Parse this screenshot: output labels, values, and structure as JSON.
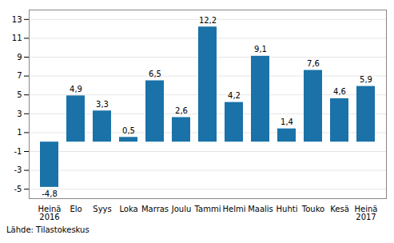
{
  "chart_data": {
    "type": "bar",
    "categories": [
      "Heinä\n2016",
      "Elo",
      "Syys",
      "Loka",
      "Marras",
      "Joulu",
      "Tammi",
      "Helmi",
      "Maalis",
      "Huhti",
      "Touko",
      "Kesä",
      "Heinä\n2017"
    ],
    "values": [
      -4.8,
      4.9,
      3.3,
      0.5,
      6.5,
      2.6,
      12.2,
      4.2,
      9.1,
      1.4,
      7.6,
      4.6,
      5.9
    ],
    "value_labels": [
      "-4,8",
      "4,9",
      "3,3",
      "0,5",
      "6,5",
      "2,6",
      "12,2",
      "4,2",
      "9,1",
      "1,4",
      "7,6",
      "4,6",
      "5,9"
    ],
    "data_labels": true,
    "color": "#1a72a8",
    "ylim": [
      -6,
      14
    ],
    "yticks": [
      -5,
      -3,
      -1,
      1,
      3,
      5,
      7,
      9,
      11,
      13
    ],
    "grid": true,
    "caption": "Lähde: Tilastokeskus"
  }
}
